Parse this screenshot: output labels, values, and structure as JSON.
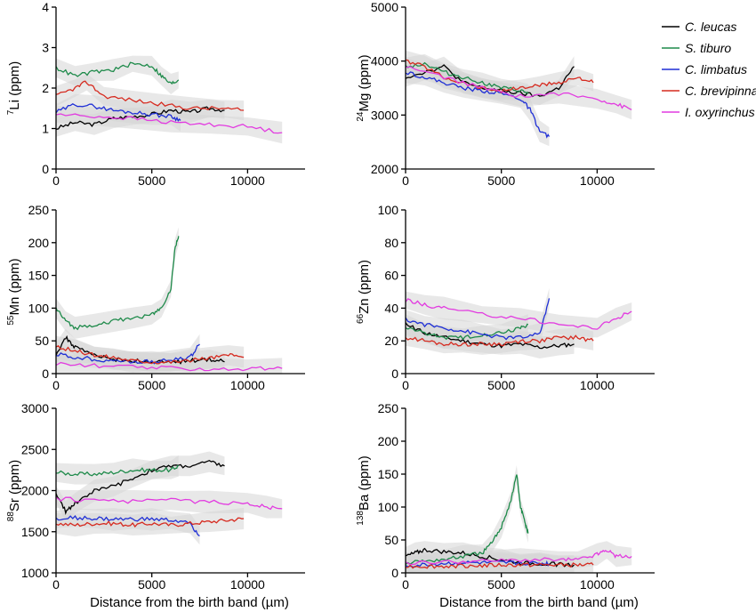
{
  "colors": {
    "C. leucas": "#000000",
    "S. tiburo": "#1e8a4a",
    "C. limbatus": "#1f2fd6",
    "C. brevipinna": "#d62a1f",
    "I. oxyrinchus": "#e23be0",
    "band": "#d6d6d6"
  },
  "chart_data": [
    {
      "type": "line",
      "isotope": "7",
      "element": "Li",
      "unit": "(ppm)",
      "ylim": [
        0,
        4
      ],
      "yticks": [
        0,
        1,
        2,
        3,
        4
      ],
      "xlim": [
        0,
        13000
      ],
      "series": [
        {
          "name": "C. leucas",
          "x": [
            0,
            1000,
            2000,
            3000,
            4000,
            5000,
            6000,
            7000,
            8000,
            8800
          ],
          "y": [
            1.0,
            1.15,
            1.1,
            1.25,
            1.3,
            1.35,
            1.45,
            1.4,
            1.5,
            1.45
          ]
        },
        {
          "name": "S. tiburo",
          "x": [
            0,
            1000,
            2000,
            3000,
            4000,
            5000,
            5500,
            6000,
            6400
          ],
          "y": [
            2.5,
            2.3,
            2.4,
            2.45,
            2.6,
            2.55,
            2.3,
            2.1,
            2.2
          ]
        },
        {
          "name": "C. limbatus",
          "x": [
            0,
            1000,
            2000,
            3000,
            4000,
            5000,
            6000,
            6500
          ],
          "y": [
            1.4,
            1.6,
            1.55,
            1.45,
            1.4,
            1.35,
            1.3,
            1.2
          ]
        },
        {
          "name": "C. brevipinna",
          "x": [
            0,
            1000,
            1600,
            2500,
            4000,
            5500,
            7000,
            8500,
            9800
          ],
          "y": [
            1.8,
            2.0,
            2.15,
            1.8,
            1.7,
            1.6,
            1.5,
            1.5,
            1.45
          ]
        },
        {
          "name": "I. oxyrinchus",
          "x": [
            0,
            2000,
            4000,
            6000,
            8000,
            10000,
            11800
          ],
          "y": [
            1.35,
            1.3,
            1.25,
            1.15,
            1.1,
            1.05,
            0.9
          ]
        }
      ]
    },
    {
      "type": "line",
      "isotope": "24",
      "element": "Mg",
      "unit": "(ppm)",
      "ylim": [
        2000,
        5000
      ],
      "yticks": [
        2000,
        3000,
        4000,
        5000
      ],
      "xlim": [
        0,
        13000
      ],
      "series": [
        {
          "name": "C. leucas",
          "x": [
            0,
            1000,
            2000,
            3000,
            4000,
            5000,
            6000,
            7000,
            8000,
            8800
          ],
          "y": [
            3700,
            3800,
            3900,
            3600,
            3500,
            3450,
            3400,
            3350,
            3500,
            3900
          ]
        },
        {
          "name": "S. tiburo",
          "x": [
            0,
            1000,
            2000,
            3000,
            4000,
            5000,
            6000,
            6400
          ],
          "y": [
            3900,
            3950,
            3800,
            3700,
            3600,
            3500,
            3450,
            3400
          ]
        },
        {
          "name": "C. limbatus",
          "x": [
            0,
            1000,
            2000,
            3000,
            4000,
            5000,
            6000,
            6500,
            7000,
            7500
          ],
          "y": [
            3800,
            3700,
            3600,
            3500,
            3450,
            3400,
            3300,
            3100,
            2700,
            2600
          ]
        },
        {
          "name": "C. brevipinna",
          "x": [
            0,
            1000,
            2000,
            3000,
            4000,
            5000,
            6000,
            7000,
            8000,
            9000,
            9800
          ],
          "y": [
            4000,
            3900,
            3700,
            3600,
            3500,
            3450,
            3500,
            3550,
            3600,
            3700,
            3600
          ]
        },
        {
          "name": "I. oxyrinchus",
          "x": [
            0,
            2000,
            4000,
            6000,
            8000,
            10000,
            11000,
            11800
          ],
          "y": [
            3900,
            3700,
            3500,
            3350,
            3400,
            3300,
            3200,
            3100
          ]
        }
      ]
    },
    {
      "type": "line",
      "isotope": "55",
      "element": "Mn",
      "unit": "(ppm)",
      "ylim": [
        0,
        250
      ],
      "yticks": [
        0,
        50,
        100,
        150,
        200,
        250
      ],
      "xlim": [
        0,
        13000
      ],
      "series": [
        {
          "name": "C. leucas",
          "x": [
            0,
            500,
            1000,
            2000,
            3000,
            4000,
            5000,
            6000,
            7000,
            8000,
            8800
          ],
          "y": [
            30,
            55,
            40,
            28,
            22,
            20,
            18,
            17,
            20,
            22,
            18
          ]
        },
        {
          "name": "S. tiburo",
          "x": [
            0,
            500,
            1000,
            2000,
            3000,
            4000,
            5000,
            5500,
            6000,
            6200,
            6400
          ],
          "y": [
            100,
            80,
            70,
            75,
            80,
            85,
            90,
            100,
            130,
            190,
            210
          ]
        },
        {
          "name": "C. limbatus",
          "x": [
            0,
            1000,
            2000,
            3000,
            4000,
            5000,
            6000,
            7000,
            7500
          ],
          "y": [
            30,
            25,
            22,
            20,
            18,
            18,
            20,
            25,
            45
          ]
        },
        {
          "name": "C. brevipinna",
          "x": [
            0,
            1000,
            2000,
            3000,
            4000,
            5000,
            6000,
            7000,
            8000,
            9000,
            9800
          ],
          "y": [
            40,
            35,
            28,
            25,
            20,
            18,
            18,
            20,
            24,
            28,
            25
          ]
        },
        {
          "name": "I. oxyrinchus",
          "x": [
            0,
            2000,
            4000,
            6000,
            8000,
            10000,
            11800
          ],
          "y": [
            15,
            12,
            10,
            8,
            7,
            7,
            8
          ]
        }
      ]
    },
    {
      "type": "line",
      "isotope": "66",
      "element": "Zn",
      "unit": "(ppm)",
      "ylim": [
        0,
        100
      ],
      "yticks": [
        0,
        20,
        40,
        60,
        80,
        100
      ],
      "xlim": [
        0,
        13000
      ],
      "series": [
        {
          "name": "C. leucas",
          "x": [
            0,
            1000,
            2000,
            3000,
            4000,
            5000,
            6000,
            7000,
            8000,
            8800
          ],
          "y": [
            30,
            25,
            22,
            20,
            18,
            17,
            18,
            16,
            17,
            18
          ]
        },
        {
          "name": "S. tiburo",
          "x": [
            0,
            1000,
            2000,
            3000,
            4000,
            5000,
            6000,
            6400
          ],
          "y": [
            28,
            25,
            22,
            22,
            24,
            25,
            28,
            30
          ]
        },
        {
          "name": "C. limbatus",
          "x": [
            0,
            1000,
            2000,
            3000,
            4000,
            5000,
            6000,
            7000,
            7500
          ],
          "y": [
            33,
            30,
            28,
            26,
            24,
            22,
            22,
            24,
            46
          ]
        },
        {
          "name": "C. brevipinna",
          "x": [
            0,
            1000,
            2000,
            3000,
            4000,
            5000,
            6000,
            7000,
            8000,
            9000,
            9800
          ],
          "y": [
            22,
            20,
            18,
            18,
            18,
            18,
            20,
            20,
            22,
            22,
            20
          ]
        },
        {
          "name": "I. oxyrinchus",
          "x": [
            0,
            1000,
            2000,
            4000,
            6000,
            8000,
            10000,
            11000,
            11800
          ],
          "y": [
            45,
            42,
            40,
            36,
            34,
            30,
            28,
            34,
            38
          ]
        }
      ]
    },
    {
      "type": "line",
      "isotope": "88",
      "element": "Sr",
      "unit": "(ppm)",
      "ylim": [
        1000,
        3000
      ],
      "yticks": [
        1000,
        1500,
        2000,
        2500,
        3000
      ],
      "xlim": [
        0,
        13000
      ],
      "series": [
        {
          "name": "C. leucas",
          "x": [
            0,
            500,
            1000,
            2000,
            3000,
            4000,
            5000,
            6000,
            7000,
            8000,
            8800
          ],
          "y": [
            1950,
            1750,
            1850,
            2000,
            2050,
            2150,
            2250,
            2300,
            2300,
            2350,
            2300
          ]
        },
        {
          "name": "S. tiburo",
          "x": [
            0,
            1000,
            2000,
            3000,
            4000,
            5000,
            6000,
            6400
          ],
          "y": [
            2220,
            2200,
            2200,
            2220,
            2250,
            2250,
            2250,
            2300
          ]
        },
        {
          "name": "C. limbatus",
          "x": [
            0,
            1000,
            2000,
            3000,
            4000,
            5000,
            6000,
            7000,
            7500
          ],
          "y": [
            1650,
            1670,
            1660,
            1650,
            1650,
            1650,
            1640,
            1600,
            1450
          ]
        },
        {
          "name": "C. brevipinna",
          "x": [
            0,
            1000,
            2000,
            3000,
            4000,
            5000,
            6000,
            7000,
            8000,
            9000,
            9800
          ],
          "y": [
            1600,
            1580,
            1600,
            1600,
            1580,
            1600,
            1580,
            1600,
            1620,
            1640,
            1660
          ]
        },
        {
          "name": "I. oxyrinchus",
          "x": [
            0,
            2000,
            4000,
            6000,
            8000,
            10000,
            11000,
            11800
          ],
          "y": [
            1900,
            1880,
            1870,
            1880,
            1860,
            1850,
            1800,
            1780
          ]
        }
      ]
    },
    {
      "type": "line",
      "isotope": "138",
      "element": "Ba",
      "unit": "(ppm)",
      "ylim": [
        0,
        250
      ],
      "yticks": [
        0,
        50,
        100,
        150,
        200,
        250
      ],
      "xlim": [
        0,
        13000
      ],
      "series": [
        {
          "name": "C. leucas",
          "x": [
            0,
            500,
            1000,
            2000,
            3000,
            4000,
            5000,
            6000,
            7000,
            8000,
            8800
          ],
          "y": [
            25,
            30,
            35,
            32,
            30,
            25,
            20,
            15,
            14,
            13,
            12
          ]
        },
        {
          "name": "S. tiburo",
          "x": [
            0,
            1000,
            2000,
            3000,
            4000,
            4500,
            5000,
            5500,
            5800,
            6000,
            6200,
            6400
          ],
          "y": [
            15,
            18,
            20,
            25,
            30,
            45,
            70,
            110,
            150,
            100,
            80,
            60
          ]
        },
        {
          "name": "C. limbatus",
          "x": [
            0,
            1000,
            2000,
            3000,
            4000,
            5000,
            6000,
            7000,
            7500
          ],
          "y": [
            10,
            12,
            14,
            15,
            15,
            15,
            15,
            14,
            14
          ]
        },
        {
          "name": "C. brevipinna",
          "x": [
            0,
            1000,
            2000,
            3000,
            4000,
            5000,
            6000,
            7000,
            8000,
            9000,
            9800
          ],
          "y": [
            10,
            10,
            10,
            11,
            11,
            12,
            12,
            12,
            12,
            12,
            12
          ]
        },
        {
          "name": "I. oxyrinchus",
          "x": [
            0,
            2000,
            4000,
            6000,
            8000,
            9000,
            10000,
            10500,
            11000,
            11800
          ],
          "y": [
            15,
            17,
            18,
            20,
            20,
            20,
            28,
            35,
            25,
            25
          ]
        }
      ]
    }
  ],
  "xaxis": {
    "label": "Distance from the birth band (µm)",
    "ticks": [
      "0",
      "5000",
      "10000"
    ],
    "tick_values": [
      0,
      5000,
      10000
    ]
  },
  "legend": [
    "C. leucas",
    "S. tiburo",
    "C. limbatus",
    "C. brevipinna",
    "I. oxyrinchus"
  ]
}
